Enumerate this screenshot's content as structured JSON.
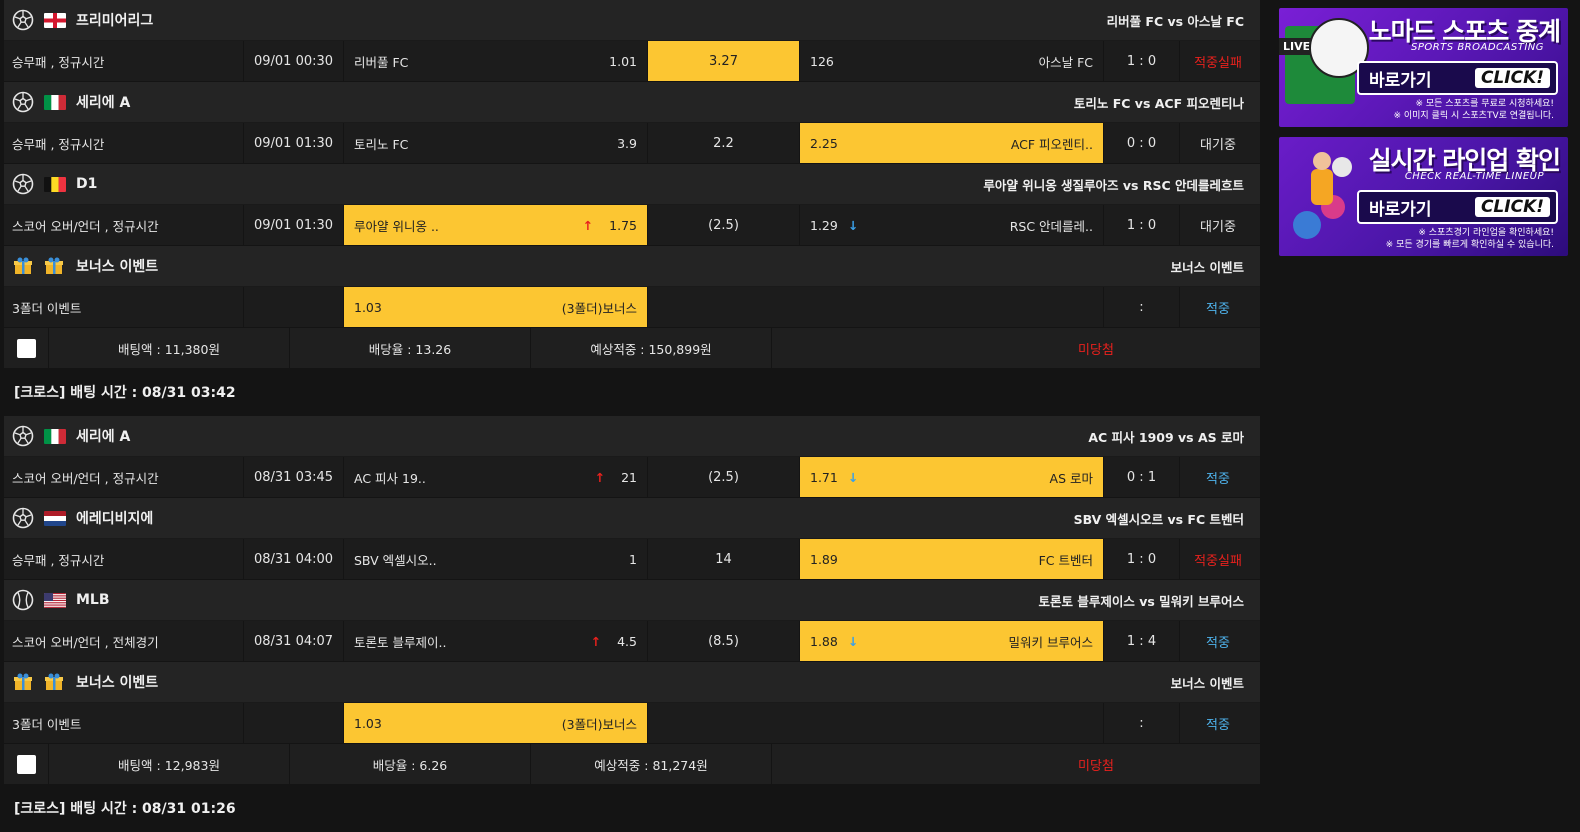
{
  "groups": [
    {
      "matches": [
        {
          "sport_icon": "soccer-ball-icon",
          "flag": "england",
          "league": "프리미어리그",
          "title": "리버풀 FC vs 아스날 FC",
          "type": "승무패 , 정규시간",
          "time": "09/01 00:30",
          "home": "리버풀 FC",
          "home_odds": "1.01",
          "mid": "3.27",
          "away_odds": "126",
          "away": "아스날 FC",
          "score": "1 : 0",
          "result": "적중실패",
          "selected": "mid",
          "home_arrow": "",
          "away_arrow": "",
          "result_color": "red"
        },
        {
          "sport_icon": "soccer-ball-icon",
          "flag": "italy",
          "league": "세리에 A",
          "title": "토리노 FC vs ACF 피오렌티나",
          "type": "승무패 , 정규시간",
          "time": "09/01 01:30",
          "home": "토리노 FC",
          "home_odds": "3.9",
          "mid": "2.2",
          "away_odds": "2.25",
          "away": "ACF 피오렌티..",
          "score": "0 : 0",
          "result": "대기중",
          "selected": "away",
          "home_arrow": "",
          "away_arrow": "",
          "result_color": "white"
        },
        {
          "sport_icon": "soccer-ball-icon",
          "flag": "belgium",
          "league": "D1",
          "title": "루아얄 위니옹 생질루아즈 vs RSC 안데를레흐트",
          "type": "스코어 오버/언더 , 정규시간",
          "time": "09/01 01:30",
          "home": "루아얄 위니옹 ..",
          "home_odds": "1.75",
          "mid": "(2.5)",
          "away_odds": "1.29",
          "away": "RSC 안데를레..",
          "score": "1 : 0",
          "result": "대기중",
          "selected": "home",
          "home_arrow": "up",
          "away_arrow": "down",
          "result_color": "white"
        }
      ],
      "bonus": {
        "league": "보너스 이벤트",
        "title": "보너스 이벤트",
        "type": "3폴더 이벤트",
        "odds": "1.03",
        "label": "(3폴더)보너스",
        "score": ":",
        "result": "적중"
      },
      "summary": {
        "bet": "배팅액 : 11,380원",
        "rate": "배당율 : 13.26",
        "expected": "예상적중 : 150,899원",
        "status": "미당첨"
      }
    },
    {
      "cross_header": "[크로스] 배팅 시간 : 08/31 03:42",
      "matches": [
        {
          "sport_icon": "soccer-ball-icon",
          "flag": "italy",
          "league": "세리에 A",
          "title": "AC 피사 1909 vs AS 로마",
          "type": "스코어 오버/언더 , 정규시간",
          "time": "08/31 03:45",
          "home": "AC 피사 19..",
          "home_odds": "21",
          "mid": "(2.5)",
          "away_odds": "1.71",
          "away": "AS 로마",
          "score": "0 : 1",
          "result": "적중",
          "selected": "away",
          "home_arrow": "up",
          "away_arrow": "down",
          "result_color": "blue"
        },
        {
          "sport_icon": "soccer-ball-icon",
          "flag": "netherlands",
          "league": "에레디비지에",
          "title": "SBV 엑셀시오르 vs FC 트벤터",
          "type": "승무패 , 정규시간",
          "time": "08/31 04:00",
          "home": "SBV 엑셀시오..",
          "home_odds": "1",
          "mid": "14",
          "away_odds": "1.89",
          "away": "FC 트벤터",
          "score": "1 : 0",
          "result": "적중실패",
          "selected": "away",
          "home_arrow": "",
          "away_arrow": "",
          "result_color": "red"
        },
        {
          "sport_icon": "baseball-icon",
          "flag": "usa",
          "league": "MLB",
          "title": "토론토 블루제이스 vs 밀워키 브루어스",
          "type": "스코어 오버/언더 , 전체경기",
          "time": "08/31 04:07",
          "home": "토론토 블루제이..",
          "home_odds": "4.5",
          "mid": "(8.5)",
          "away_odds": "1.88",
          "away": "밀워키 브루어스",
          "score": "1 : 4",
          "result": "적중",
          "selected": "away",
          "home_arrow": "up",
          "away_arrow": "down",
          "result_color": "blue"
        }
      ],
      "bonus": {
        "league": "보너스 이벤트",
        "title": "보너스 이벤트",
        "type": "3폴더 이벤트",
        "odds": "1.03",
        "label": "(3폴더)보너스",
        "score": ":",
        "result": "적중"
      },
      "summary": {
        "bet": "배팅액 : 12,983원",
        "rate": "배당율 : 6.26",
        "expected": "예상적중 : 81,274원",
        "status": "미당첨"
      }
    }
  ],
  "footer_cross_header": "[크로스] 배팅 시간 : 08/31 01:26",
  "banners": [
    {
      "title": "노마드 스포츠 중계",
      "subtitle": "SPORTS BROADCASTING",
      "button_left": "바로가기",
      "button_right": "CLICK!",
      "note1": "※ 모든 스포츠를 무료로 시청하세요!",
      "note2": "※ 이미지 클릭 시 스포츠TV로 연결됩니다.",
      "tag": "LIVE"
    },
    {
      "title": "실시간 라인업 확인",
      "subtitle": "CHECK REAL-TIME LINEUP",
      "button_left": "바로가기",
      "button_right": "CLICK!",
      "note1": "※ 스포츠경기 라인업을 확인하세요!",
      "note2": "※ 모든 경기를 빠르게 확인하실 수 있습니다."
    }
  ],
  "colors": {
    "selected": "#fcc632",
    "win": "#4eb1ea",
    "fail": "#e8211d",
    "arrow_up": "#e8211d",
    "arrow_down": "#3aa0e8"
  },
  "icons": {
    "arrow_up": "↑",
    "arrow_down": "↓"
  }
}
